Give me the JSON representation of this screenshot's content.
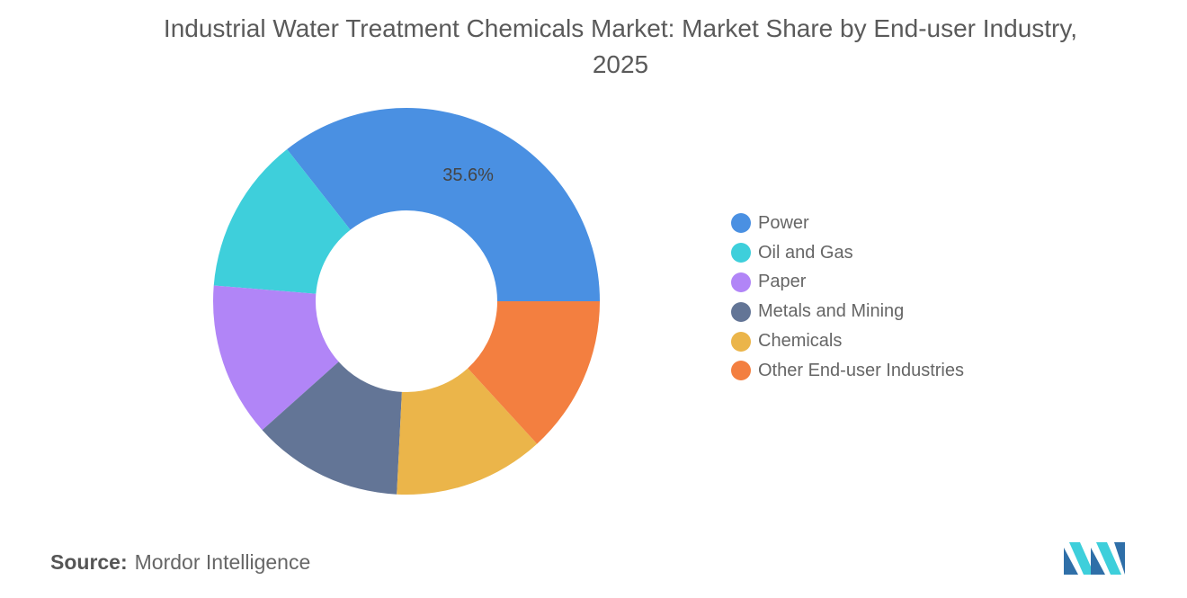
{
  "title": "Industrial Water Treatment Chemicals Market: Market Share by End-user Industry, 2025",
  "source": {
    "label": "Source:",
    "text": "Mordor Intelligence"
  },
  "chart_data": {
    "type": "pie",
    "variant": "donut",
    "title": "Industrial Water Treatment Chemicals Market: Market Share by End-user Industry, 2025",
    "categories": [
      "Power",
      "Oil and Gas",
      "Paper",
      "Metals and Mining",
      "Chemicals",
      "Other End-user Industries"
    ],
    "values": [
      35.6,
      13.1,
      12.9,
      12.6,
      12.6,
      13.2
    ],
    "unit": "%",
    "colors": [
      "#4a90e2",
      "#3ecfdb",
      "#b185f7",
      "#637596",
      "#ebb54a",
      "#f37f40"
    ],
    "data_labels": {
      "0": "35.6%"
    },
    "legend_position": "right"
  }
}
